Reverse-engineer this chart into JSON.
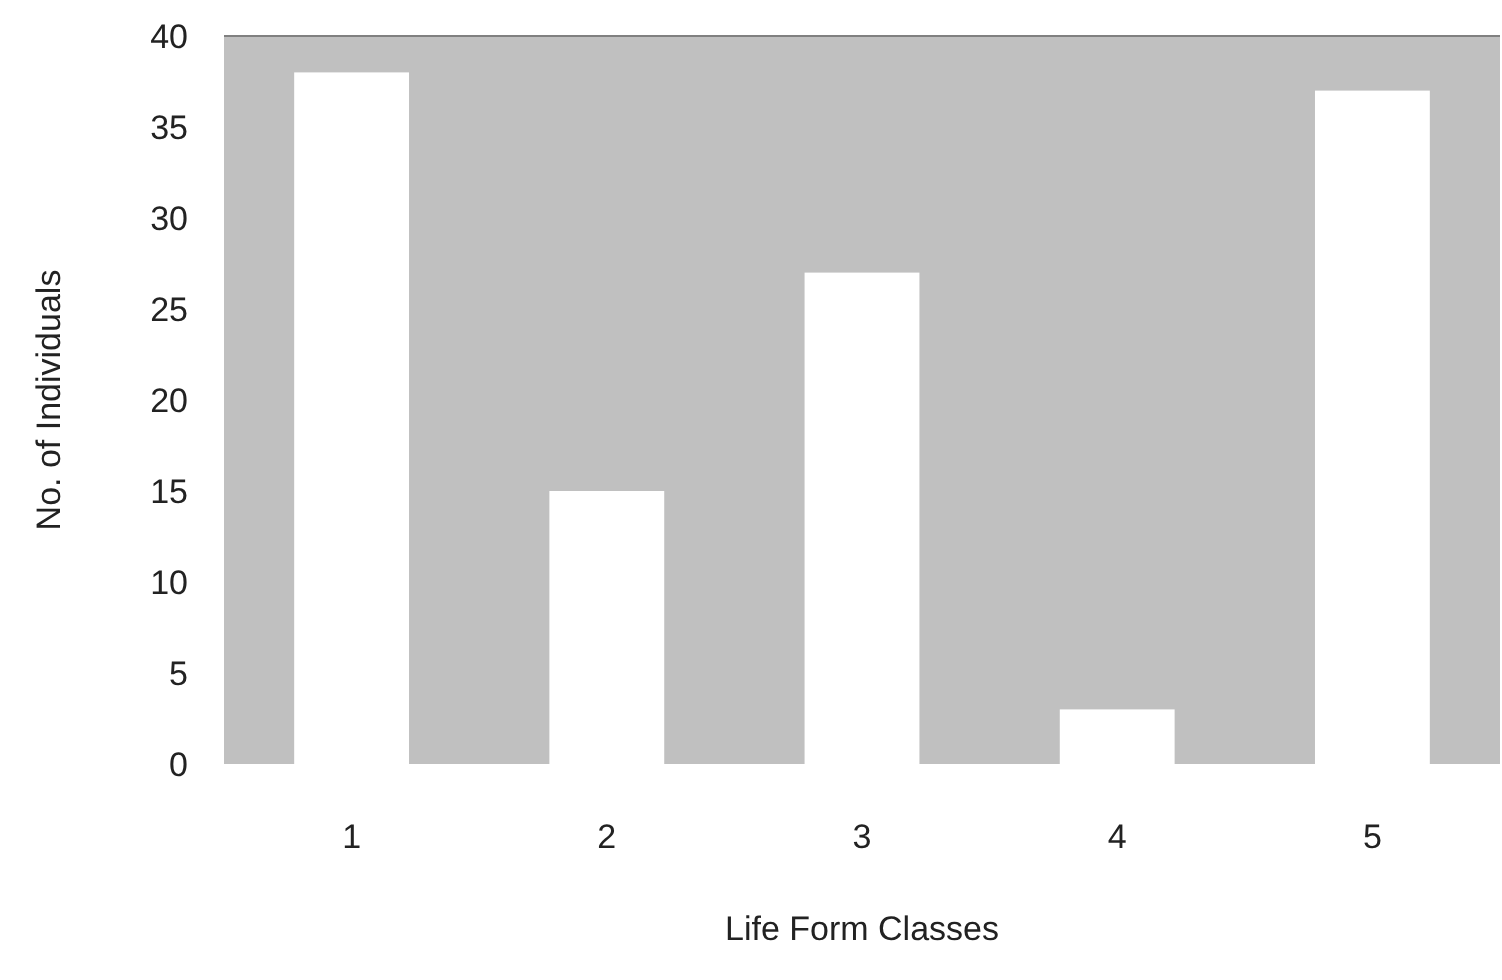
{
  "chart_data": {
    "type": "bar",
    "xlabel": "Life Form Classes",
    "ylabel": "No. of Individuals",
    "categories": [
      "1",
      "2",
      "3",
      "4",
      "5"
    ],
    "values": [
      38,
      15,
      27,
      3,
      37
    ],
    "color": "#ffffff",
    "ylim": [
      0,
      40
    ],
    "yticks": [
      0,
      5,
      10,
      15,
      20,
      25,
      30,
      35,
      40
    ],
    "grid": false
  }
}
